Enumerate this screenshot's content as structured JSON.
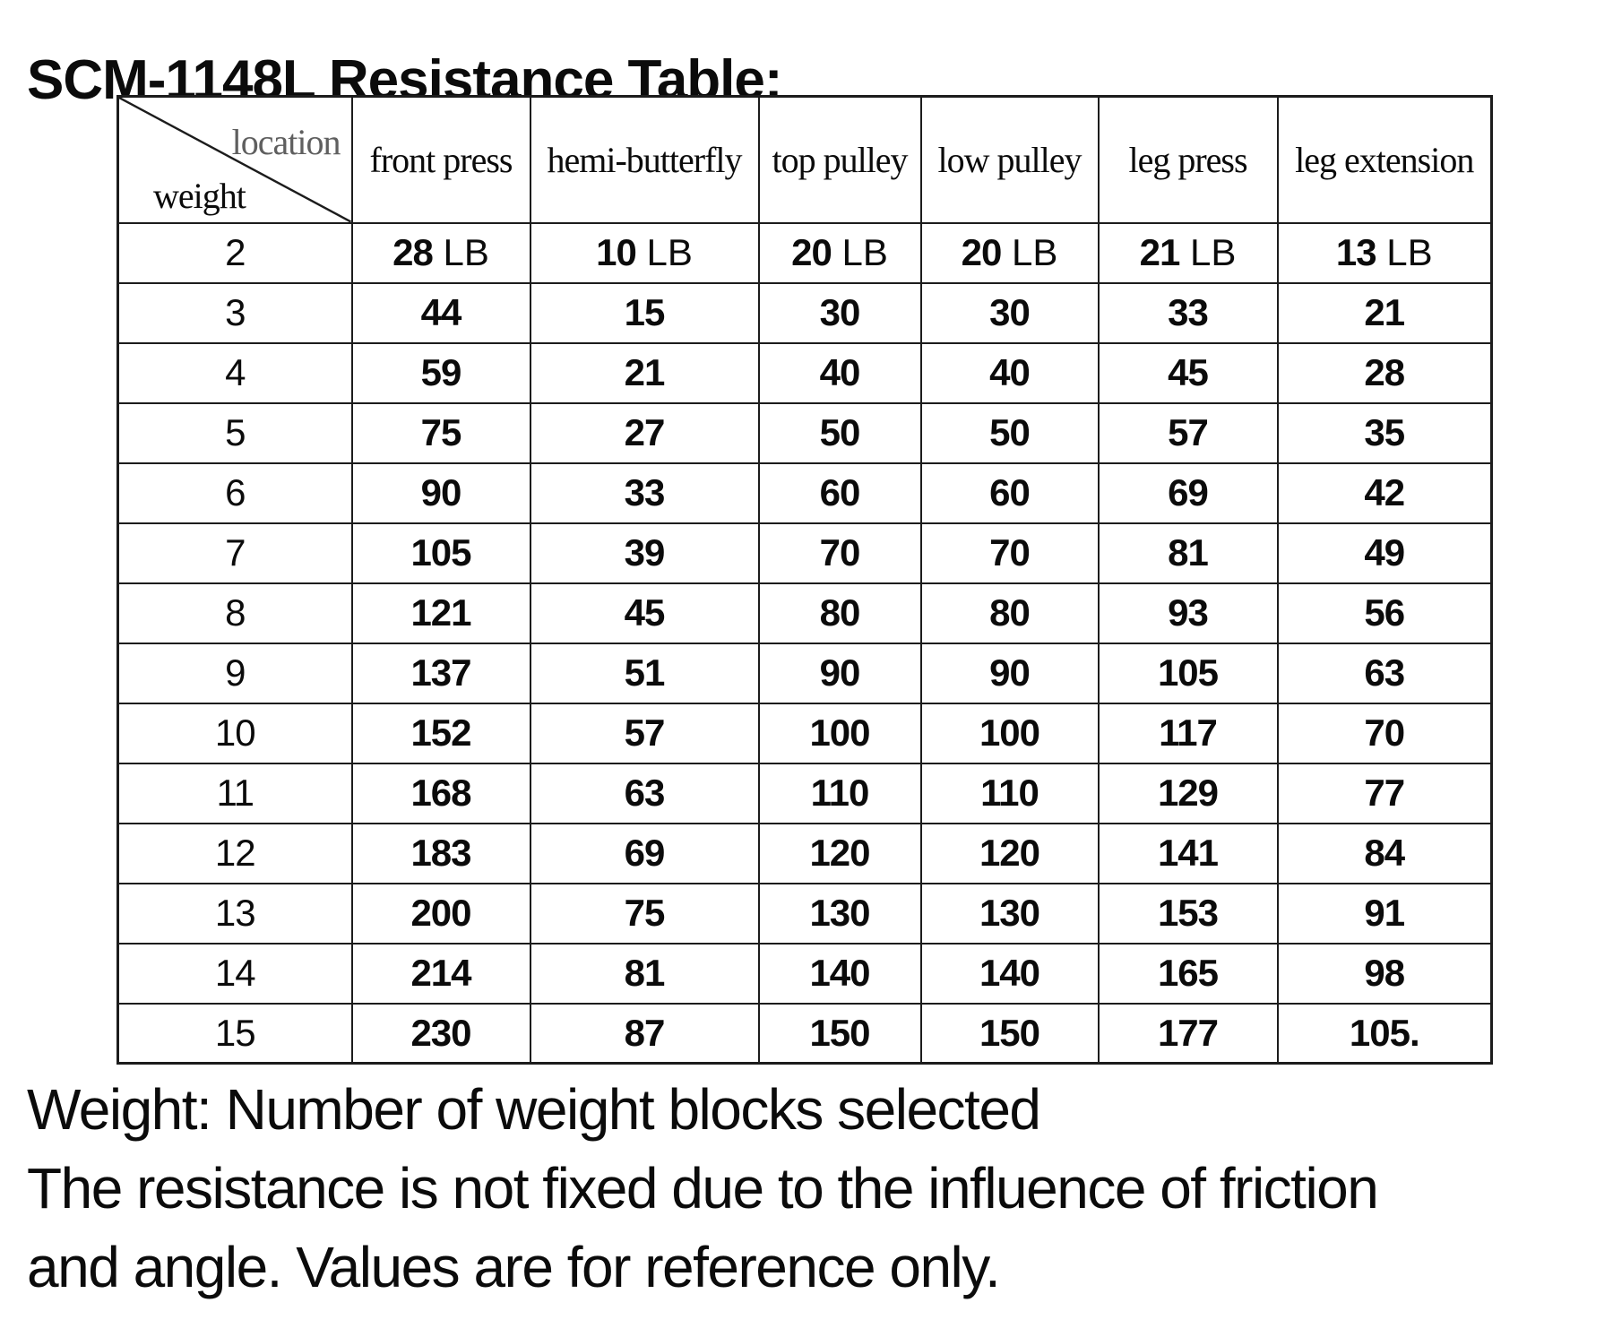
{
  "title": "SCM-1148L Resistance Table:",
  "table": {
    "corner": {
      "top_label": "location",
      "bottom_label": "weight",
      "top_label_color": "#5f5f5f"
    },
    "columns": [
      "front press",
      "hemi-butterfly",
      "top pulley",
      "low pulley",
      "leg press",
      "leg extension"
    ],
    "unit": "LB",
    "rows": [
      {
        "weight": "2",
        "unit": "LB",
        "values": [
          "28",
          "10",
          "20",
          "20",
          "21",
          "13"
        ]
      },
      {
        "weight": "3",
        "unit": "",
        "values": [
          "44",
          "15",
          "30",
          "30",
          "33",
          "21"
        ]
      },
      {
        "weight": "4",
        "unit": "",
        "values": [
          "59",
          "21",
          "40",
          "40",
          "45",
          "28"
        ]
      },
      {
        "weight": "5",
        "unit": "",
        "values": [
          "75",
          "27",
          "50",
          "50",
          "57",
          "35"
        ]
      },
      {
        "weight": "6",
        "unit": "",
        "values": [
          "90",
          "33",
          "60",
          "60",
          "69",
          "42"
        ]
      },
      {
        "weight": "7",
        "unit": "",
        "values": [
          "105",
          "39",
          "70",
          "70",
          "81",
          "49"
        ]
      },
      {
        "weight": "8",
        "unit": "",
        "values": [
          "121",
          "45",
          "80",
          "80",
          "93",
          "56"
        ]
      },
      {
        "weight": "9",
        "unit": "",
        "values": [
          "137",
          "51",
          "90",
          "90",
          "105",
          "63"
        ]
      },
      {
        "weight": "10",
        "unit": "",
        "values": [
          "152",
          "57",
          "100",
          "100",
          "117",
          "70"
        ]
      },
      {
        "weight": "11",
        "unit": "",
        "values": [
          "168",
          "63",
          "110",
          "110",
          "129",
          "77"
        ]
      },
      {
        "weight": "12",
        "unit": "",
        "values": [
          "183",
          "69",
          "120",
          "120",
          "141",
          "84"
        ]
      },
      {
        "weight": "13",
        "unit": "",
        "values": [
          "200",
          "75",
          "130",
          "130",
          "153",
          "91"
        ]
      },
      {
        "weight": "14",
        "unit": "",
        "values": [
          "214",
          "81",
          "140",
          "140",
          "165",
          "98"
        ]
      },
      {
        "weight": "15",
        "unit": "",
        "values": [
          "230",
          "87",
          "150",
          "150",
          "177",
          "105."
        ]
      }
    ]
  },
  "notes": [
    "Weight: Number of weight blocks selected",
    "The resistance is not fixed due to the influence of friction",
    "and angle. Values are for reference only."
  ],
  "colors": {
    "text": "#0b0b0b",
    "border": "#1c1c1c",
    "corner_label_gray": "#5f5f5f",
    "background": "#ffffff"
  }
}
